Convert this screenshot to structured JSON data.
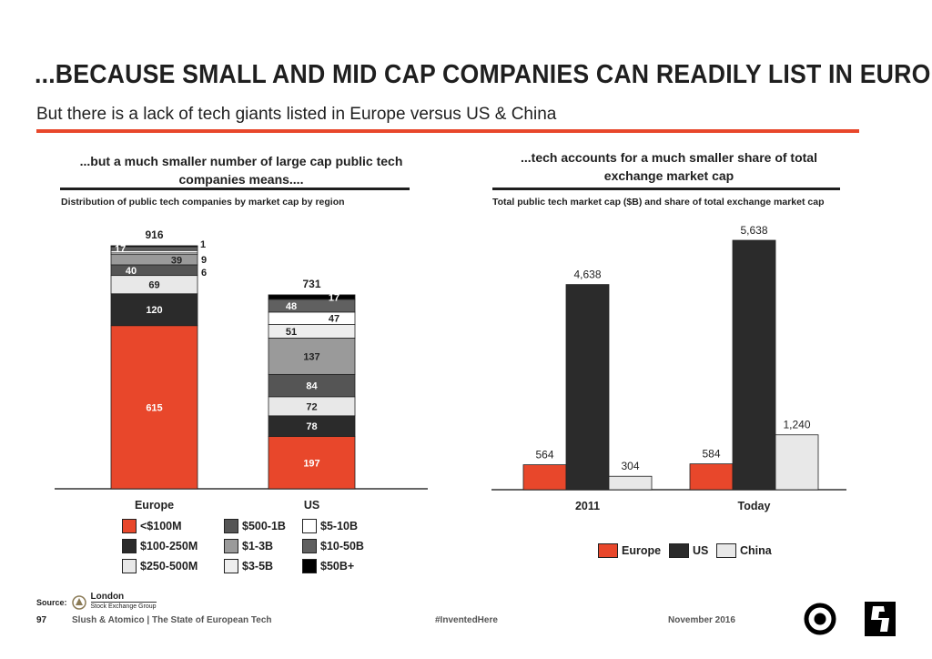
{
  "header": {
    "title": "...BECAUSE SMALL AND MID CAP COMPANIES CAN READILY LIST IN EUROPE",
    "subtitle": "But there is a lack of tech giants listed in Europe versus US & China"
  },
  "colors": {
    "accent": "#e8472b",
    "dark": "#2b2b2b"
  },
  "left_panel": {
    "heading_line1": "...but a much smaller number of large cap public tech",
    "heading_line2": "companies means....",
    "caption": "Distribution of public tech companies by market cap by region"
  },
  "right_panel": {
    "heading_line1": "...tech accounts for a much smaller share of total",
    "heading_line2": "exchange market cap",
    "caption": "Total public tech market cap ($B) and share of total exchange market cap"
  },
  "chart_data": [
    {
      "type": "bar",
      "stacked": true,
      "categories": [
        "Europe",
        "US"
      ],
      "totals": [
        "916",
        "731"
      ],
      "series": [
        {
          "name": "<$100M",
          "color": "#e8472b",
          "values": [
            615,
            197
          ]
        },
        {
          "name": "$100-250M",
          "color": "#2b2b2b",
          "values": [
            120,
            78
          ]
        },
        {
          "name": "$250-500M",
          "color": "#e8e8e8",
          "values": [
            69,
            72
          ]
        },
        {
          "name": "$500-1B",
          "color": "#555555",
          "values": [
            40,
            84
          ]
        },
        {
          "name": "$1-3B",
          "color": "#9a9a9a",
          "values": [
            39,
            137
          ]
        },
        {
          "name": "$3-5B",
          "color": "#eeeeee",
          "values": [
            6,
            51
          ]
        },
        {
          "name": "$5-10B",
          "color": "#ffffff",
          "values": [
            9,
            47
          ]
        },
        {
          "name": "$10-50B",
          "color": "#606060",
          "values": [
            17,
            48
          ]
        },
        {
          "name": "$50B+",
          "color": "#000000",
          "values": [
            1,
            17
          ]
        }
      ],
      "display_labels": [
        [
          "615",
          "120",
          "69",
          "40",
          "39",
          "6",
          "9",
          "17",
          "1"
        ],
        [
          "197",
          "78",
          "72",
          "84",
          "137",
          "51",
          "47",
          "48",
          "17"
        ]
      ],
      "legend_rows": [
        [
          "<$100M",
          "$500-1B",
          "$5-10B"
        ],
        [
          "$100-250M",
          "$1-3B",
          "$10-50B"
        ],
        [
          "$250-500M",
          "$3-5B",
          "$50B+"
        ]
      ]
    },
    {
      "type": "bar",
      "categories": [
        "2011",
        "Today"
      ],
      "series": [
        {
          "name": "Europe",
          "color": "#e8472b",
          "values": [
            564,
            584
          ],
          "labels": [
            "564",
            "584"
          ]
        },
        {
          "name": "US",
          "color": "#2b2b2b",
          "values": [
            4638,
            5638
          ],
          "labels": [
            "4,638",
            "5,638"
          ]
        },
        {
          "name": "China",
          "color": "#e8e8e8",
          "values": [
            304,
            1240
          ],
          "labels": [
            "304",
            "1,240"
          ]
        }
      ],
      "legend": [
        "Europe",
        "US",
        "China"
      ]
    }
  ],
  "footer": {
    "source_label": "Source:",
    "source_org_line1": "London",
    "source_org_line2": "Stock Exchange Group",
    "page_number": "97",
    "credit": "Slush & Atomico  |  The State of European Tech",
    "hashtag": "#InventedHere",
    "date": "November 2016"
  }
}
